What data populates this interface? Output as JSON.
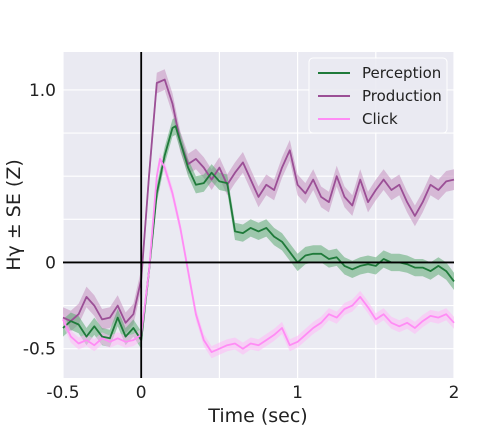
{
  "chart_data": {
    "type": "line",
    "xlabel": "Time (sec)",
    "ylabel": "Hγ ± SE (Z)",
    "xlim": [
      -0.5,
      2.0
    ],
    "ylim": [
      -0.67,
      1.22
    ],
    "x_ticks": [
      {
        "value": -0.5,
        "label": "-0.5"
      },
      {
        "value": 0,
        "label": "0"
      },
      {
        "value": 1,
        "label": "1"
      },
      {
        "value": 2,
        "label": "2"
      }
    ],
    "y_ticks": [
      {
        "value": -0.5,
        "label": "-0.5"
      },
      {
        "value": 0,
        "label": "0"
      },
      {
        "value": 1.0,
        "label": "1.0"
      }
    ],
    "grid": true,
    "reference_lines": {
      "vertical_x": 0,
      "horizontal_y": 0
    },
    "legend": {
      "position": "top-right"
    },
    "series": [
      {
        "name": "Perception",
        "color": "#1f7a3a",
        "band_color": "#5daa72",
        "se": 0.05,
        "x": [
          -0.5,
          -0.45,
          -0.4,
          -0.35,
          -0.3,
          -0.25,
          -0.2,
          -0.15,
          -0.1,
          -0.05,
          0,
          0.05,
          0.1,
          0.15,
          0.2,
          0.22,
          0.25,
          0.3,
          0.35,
          0.4,
          0.45,
          0.5,
          0.55,
          0.6,
          0.65,
          0.7,
          0.75,
          0.8,
          0.85,
          0.9,
          0.95,
          1.0,
          1.05,
          1.1,
          1.15,
          1.2,
          1.25,
          1.3,
          1.35,
          1.4,
          1.45,
          1.5,
          1.55,
          1.6,
          1.65,
          1.7,
          1.75,
          1.8,
          1.85,
          1.9,
          1.95,
          2.0
        ],
        "values": [
          -0.38,
          -0.34,
          -0.36,
          -0.43,
          -0.37,
          -0.43,
          -0.44,
          -0.32,
          -0.43,
          -0.38,
          -0.45,
          -0.05,
          0.4,
          0.62,
          0.78,
          0.79,
          0.7,
          0.55,
          0.45,
          0.46,
          0.52,
          0.47,
          0.46,
          0.18,
          0.17,
          0.2,
          0.18,
          0.2,
          0.15,
          0.12,
          0.06,
          0.0,
          0.04,
          0.05,
          0.05,
          0.02,
          0.03,
          -0.02,
          -0.04,
          -0.02,
          -0.01,
          -0.02,
          0.02,
          0.0,
          0.0,
          -0.01,
          -0.03,
          -0.03,
          -0.05,
          -0.02,
          -0.05,
          -0.11
        ]
      },
      {
        "name": "Production",
        "color": "#9b4f96",
        "band_color": "#c48fc0",
        "se": 0.06,
        "x": [
          -0.5,
          -0.45,
          -0.4,
          -0.35,
          -0.3,
          -0.25,
          -0.2,
          -0.15,
          -0.1,
          -0.05,
          0,
          0.05,
          0.1,
          0.15,
          0.2,
          0.25,
          0.3,
          0.35,
          0.4,
          0.45,
          0.5,
          0.55,
          0.6,
          0.65,
          0.7,
          0.75,
          0.8,
          0.85,
          0.9,
          0.95,
          1.0,
          1.05,
          1.1,
          1.15,
          1.2,
          1.25,
          1.3,
          1.35,
          1.4,
          1.45,
          1.5,
          1.55,
          1.6,
          1.65,
          1.7,
          1.75,
          1.8,
          1.85,
          1.9,
          1.95,
          2.0
        ],
        "values": [
          -0.32,
          -0.34,
          -0.3,
          -0.2,
          -0.25,
          -0.33,
          -0.32,
          -0.25,
          -0.35,
          -0.3,
          -0.1,
          0.5,
          1.04,
          1.06,
          0.92,
          0.7,
          0.57,
          0.6,
          0.55,
          0.48,
          0.55,
          0.45,
          0.52,
          0.58,
          0.48,
          0.38,
          0.45,
          0.42,
          0.55,
          0.65,
          0.45,
          0.4,
          0.48,
          0.38,
          0.35,
          0.5,
          0.38,
          0.33,
          0.48,
          0.35,
          0.42,
          0.48,
          0.42,
          0.45,
          0.35,
          0.27,
          0.35,
          0.45,
          0.42,
          0.47,
          0.48
        ]
      },
      {
        "name": "Click",
        "color": "#ff8cf5",
        "band_color": "#ffb8f8",
        "se": 0.035,
        "x": [
          -0.5,
          -0.45,
          -0.4,
          -0.35,
          -0.3,
          -0.25,
          -0.2,
          -0.15,
          -0.1,
          -0.05,
          0,
          0.05,
          0.1,
          0.12,
          0.15,
          0.2,
          0.25,
          0.3,
          0.35,
          0.4,
          0.45,
          0.5,
          0.55,
          0.6,
          0.65,
          0.7,
          0.75,
          0.8,
          0.85,
          0.9,
          0.95,
          1.0,
          1.05,
          1.1,
          1.15,
          1.2,
          1.25,
          1.3,
          1.35,
          1.4,
          1.45,
          1.5,
          1.55,
          1.6,
          1.65,
          1.7,
          1.75,
          1.8,
          1.85,
          1.9,
          1.95,
          2.0
        ],
        "values": [
          -0.33,
          -0.43,
          -0.47,
          -0.45,
          -0.48,
          -0.44,
          -0.46,
          -0.44,
          -0.46,
          -0.45,
          -0.42,
          -0.05,
          0.5,
          0.6,
          0.55,
          0.4,
          0.2,
          -0.05,
          -0.3,
          -0.45,
          -0.52,
          -0.5,
          -0.48,
          -0.47,
          -0.5,
          -0.47,
          -0.48,
          -0.45,
          -0.42,
          -0.38,
          -0.48,
          -0.46,
          -0.42,
          -0.38,
          -0.35,
          -0.3,
          -0.32,
          -0.27,
          -0.25,
          -0.2,
          -0.26,
          -0.33,
          -0.3,
          -0.35,
          -0.37,
          -0.35,
          -0.38,
          -0.34,
          -0.31,
          -0.32,
          -0.3,
          -0.35
        ]
      }
    ]
  }
}
